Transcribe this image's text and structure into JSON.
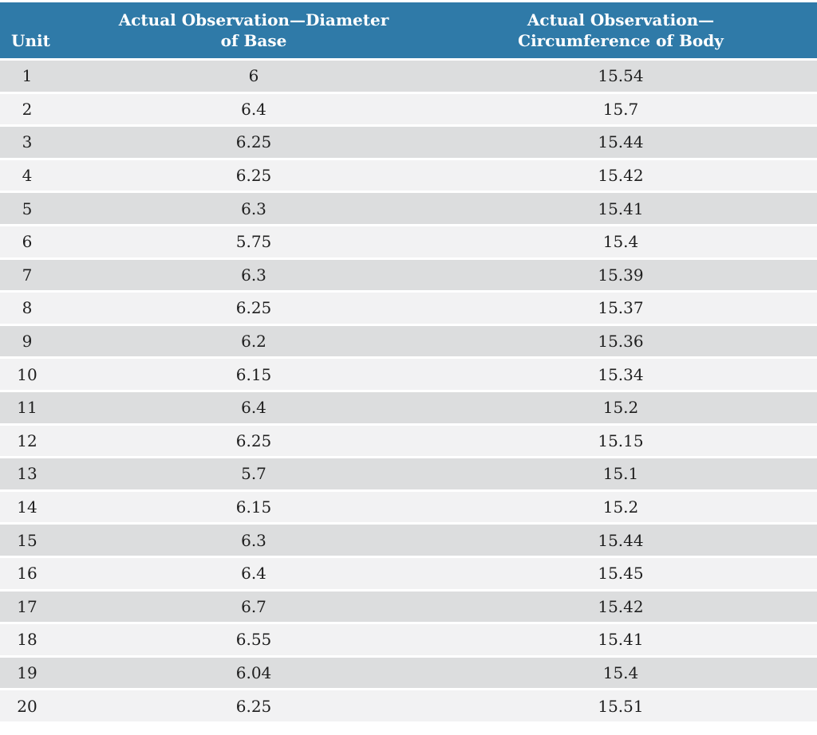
{
  "chart_data": {
    "type": "table",
    "columns": [
      "Unit",
      "Actual Observation—Diameter of Base",
      "Actual Observation—Circumference of Body"
    ],
    "rows": [
      [
        "1",
        "6",
        "15.54"
      ],
      [
        "2",
        "6.4",
        "15.7"
      ],
      [
        "3",
        "6.25",
        "15.44"
      ],
      [
        "4",
        "6.25",
        "15.42"
      ],
      [
        "5",
        "6.3",
        "15.41"
      ],
      [
        "6",
        "5.75",
        "15.4"
      ],
      [
        "7",
        "6.3",
        "15.39"
      ],
      [
        "8",
        "6.25",
        "15.37"
      ],
      [
        "9",
        "6.2",
        "15.36"
      ],
      [
        "10",
        "6.15",
        "15.34"
      ],
      [
        "11",
        "6.4",
        "15.2"
      ],
      [
        "12",
        "6.25",
        "15.15"
      ],
      [
        "13",
        "5.7",
        "15.1"
      ],
      [
        "14",
        "6.15",
        "15.2"
      ],
      [
        "15",
        "6.3",
        "15.44"
      ],
      [
        "16",
        "6.4",
        "15.45"
      ],
      [
        "17",
        "6.7",
        "15.42"
      ],
      [
        "18",
        "6.55",
        "15.41"
      ],
      [
        "19",
        "6.04",
        "15.4"
      ],
      [
        "20",
        "6.25",
        "15.51"
      ]
    ]
  },
  "colors": {
    "header_bg": "#2f7aa8",
    "header_text": "#ffffff",
    "row_dark": "#dcddde",
    "row_light": "#f2f2f3",
    "body_text": "#1e1e1e",
    "page_bg": "#ffffff"
  }
}
